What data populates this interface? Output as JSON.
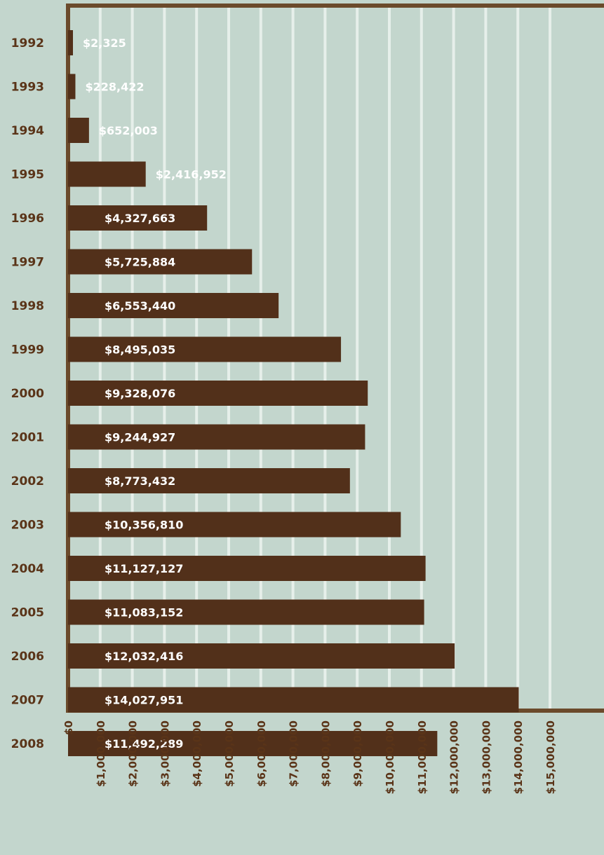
{
  "chart_data": {
    "type": "bar",
    "orientation": "horizontal",
    "categories": [
      "1992",
      "1993",
      "1994",
      "1995",
      "1996",
      "1997",
      "1998",
      "1999",
      "2000",
      "2001",
      "2002",
      "2003",
      "2004",
      "2005",
      "2006",
      "2007",
      "2008"
    ],
    "values": [
      2325,
      228422,
      652003,
      2416952,
      4327663,
      5725884,
      6553440,
      8495035,
      9328076,
      9244927,
      8773432,
      10356810,
      11127127,
      11083152,
      12032416,
      14027951,
      11492289
    ],
    "value_labels": [
      "$2,325",
      "$228,422",
      "$652,003",
      "$2,416,952",
      "$4,327,663",
      "$5,725,884",
      "$6,553,440",
      "$8,495,035",
      "$9,328,076",
      "$9,244,927",
      "$8,773,432",
      "$10,356,810",
      "$11,127,127",
      "$11,083,152",
      "$12,032,416",
      "$14,027,951",
      "$11,492,289"
    ],
    "x_ticks": [
      "$0",
      "$1,000,000",
      "$2,000,000",
      "$3,000,000",
      "$4,000,000",
      "$5,000,000",
      "$6,000,000",
      "$7,000,000",
      "$8,000,000",
      "$9,000,000",
      "$10,000,000",
      "$11,000,000",
      "$12,000,000",
      "$13,000,000",
      "$14,000,000",
      "$15,000,000"
    ],
    "xlim": [
      0,
      15000000
    ],
    "grid": true,
    "colors": {
      "background": "#c3d6cd",
      "bar": "#52301a",
      "axis": "#6b4a2b",
      "grid": "#e6efea",
      "text": "#5a3418",
      "bar_text": "#ffffff"
    }
  }
}
